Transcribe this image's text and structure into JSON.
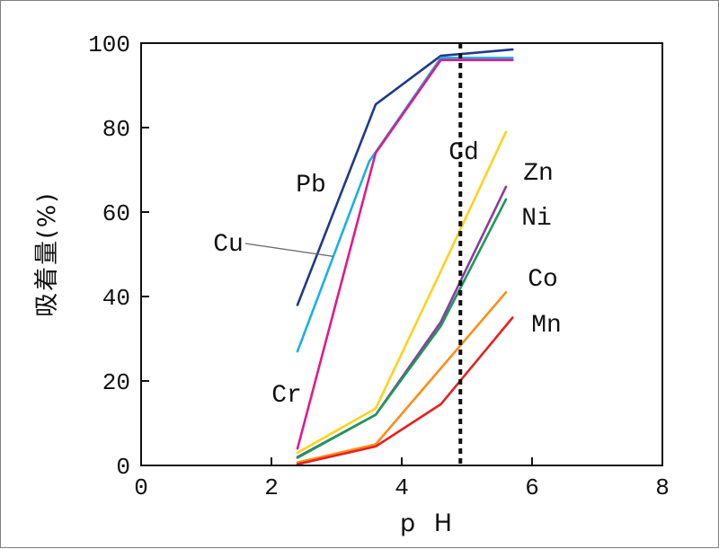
{
  "chart_data": {
    "type": "line",
    "xlabel": "p H",
    "ylabel": "吸着量(%)",
    "xlim": [
      0,
      8
    ],
    "ylim": [
      0,
      100
    ],
    "xticks": [
      0,
      2,
      4,
      6,
      8
    ],
    "yticks": [
      0,
      20,
      40,
      60,
      80,
      100
    ],
    "grid": false,
    "legend": "inline labels",
    "reference_line": {
      "x": 4.9,
      "style": "dotted"
    },
    "series": [
      {
        "name": "Pb",
        "color": "#1f3a8a",
        "points": [
          [
            2.4,
            38
          ],
          [
            3.6,
            85.5
          ],
          [
            4.6,
            97
          ],
          [
            5.7,
            98.5
          ]
        ]
      },
      {
        "name": "Cu",
        "color": "#1ab0e6",
        "points": [
          [
            2.4,
            27
          ],
          [
            3.5,
            72
          ],
          [
            4.6,
            96.5
          ],
          [
            5.7,
            96.5
          ]
        ]
      },
      {
        "name": "Cr",
        "color": "#e0198a",
        "points": [
          [
            2.4,
            4
          ],
          [
            3.6,
            74
          ],
          [
            4.6,
            96
          ],
          [
            5.7,
            96
          ]
        ]
      },
      {
        "name": "Cd",
        "color": "#ffd21a",
        "points": [
          [
            2.4,
            3
          ],
          [
            3.6,
            13.5
          ],
          [
            4.6,
            46
          ],
          [
            5.6,
            79
          ]
        ]
      },
      {
        "name": "Zn",
        "color": "#8e3a9e",
        "points": [
          [
            2.4,
            2
          ],
          [
            3.6,
            12
          ],
          [
            4.6,
            34
          ],
          [
            5.6,
            66
          ]
        ]
      },
      {
        "name": "Ni",
        "color": "#1a9a5a",
        "points": [
          [
            2.4,
            1.8
          ],
          [
            3.6,
            12
          ],
          [
            4.6,
            33
          ],
          [
            5.6,
            63
          ]
        ]
      },
      {
        "name": "Co",
        "color": "#ff8c1a",
        "points": [
          [
            2.4,
            0.7
          ],
          [
            3.6,
            5
          ],
          [
            4.6,
            23
          ],
          [
            5.6,
            41
          ]
        ]
      },
      {
        "name": "Mn",
        "color": "#e62020",
        "points": [
          [
            2.4,
            0.3
          ],
          [
            3.6,
            4.5
          ],
          [
            4.6,
            14.5
          ],
          [
            5.7,
            35
          ]
        ]
      }
    ],
    "labels": [
      {
        "series": "Pb",
        "text": "Pb"
      },
      {
        "series": "Cu",
        "text": "Cu"
      },
      {
        "series": "Cr",
        "text": "Cr"
      },
      {
        "series": "Cd",
        "text": "Cd"
      },
      {
        "series": "Zn",
        "text": "Zn"
      },
      {
        "series": "Ni",
        "text": "Ni"
      },
      {
        "series": "Co",
        "text": "Co"
      },
      {
        "series": "Mn",
        "text": "Mn"
      }
    ]
  }
}
